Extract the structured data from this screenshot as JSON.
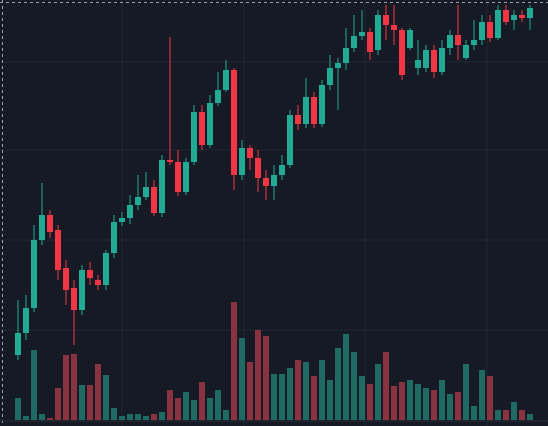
{
  "chart_data": {
    "type": "candlestick",
    "open": [
      71,
      93,
      118,
      186,
      211,
      196,
      158,
      138,
      116,
      156,
      146,
      141,
      173,
      204,
      208,
      221,
      229,
      239,
      213,
      266,
      264,
      234,
      264,
      314,
      281,
      323,
      336,
      356,
      251,
      278,
      268,
      248,
      240,
      251,
      261,
      311,
      302,
      329,
      302,
      341,
      358,
      363,
      378,
      390,
      394,
      376,
      411,
      401,
      396,
      378,
      358,
      358,
      376,
      354,
      378,
      391,
      368,
      381,
      386,
      404,
      388,
      416,
      406,
      411,
      408
    ],
    "high": [
      126,
      131,
      201,
      243,
      216,
      201,
      166,
      146,
      161,
      164,
      151,
      176,
      211,
      214,
      231,
      251,
      254,
      246,
      271,
      389,
      276,
      268,
      321,
      321,
      331,
      354,
      366,
      358,
      286,
      281,
      276,
      256,
      261,
      271,
      316,
      321,
      348,
      334,
      346,
      371,
      368,
      398,
      411,
      416,
      398,
      416,
      421,
      421,
      398,
      398,
      386,
      381,
      381,
      386,
      396,
      421,
      386,
      406,
      411,
      411,
      421,
      421,
      416,
      416,
      421
    ],
    "low": [
      66,
      86,
      114,
      181,
      188,
      146,
      121,
      81,
      111,
      141,
      136,
      136,
      168,
      200,
      202,
      216,
      226,
      210,
      209,
      261,
      230,
      231,
      261,
      276,
      278,
      320,
      334,
      236,
      246,
      256,
      234,
      226,
      226,
      246,
      258,
      296,
      298,
      298,
      299,
      336,
      316,
      356,
      374,
      386,
      366,
      371,
      386,
      381,
      346,
      376,
      351,
      354,
      348,
      351,
      371,
      366,
      366,
      376,
      381,
      384,
      386,
      401,
      396,
      404,
      396
    ],
    "close": [
      93,
      118,
      186,
      211,
      194,
      156,
      136,
      116,
      156,
      148,
      141,
      173,
      204,
      208,
      221,
      229,
      239,
      213,
      266,
      264,
      234,
      264,
      314,
      281,
      323,
      336,
      356,
      251,
      278,
      268,
      248,
      240,
      251,
      261,
      311,
      302,
      329,
      302,
      341,
      358,
      363,
      378,
      390,
      394,
      374,
      411,
      401,
      396,
      351,
      396,
      366,
      376,
      354,
      378,
      391,
      381,
      381,
      386,
      404,
      388,
      416,
      404,
      411,
      408,
      418
    ],
    "volume": [
      22,
      4,
      70,
      6,
      2,
      32,
      65,
      66,
      35,
      35,
      56,
      45,
      12,
      4,
      6,
      6,
      4,
      6,
      8,
      30,
      22,
      28,
      20,
      38,
      22,
      30,
      10,
      118,
      82,
      58,
      90,
      84,
      46,
      46,
      52,
      60,
      58,
      44,
      60,
      40,
      72,
      86,
      68,
      44,
      36,
      56,
      68,
      34,
      38,
      40,
      36,
      32,
      30,
      40,
      26,
      28,
      56,
      14,
      50,
      44,
      10,
      10,
      18,
      10,
      6
    ],
    "ylim": [
      0,
      426
    ],
    "y2lim": [
      0,
      420
    ],
    "up_color": "#22ab94",
    "down_color": "#f23645",
    "volume_up_color": "#1f6b63",
    "volume_down_color": "#8a3340"
  }
}
